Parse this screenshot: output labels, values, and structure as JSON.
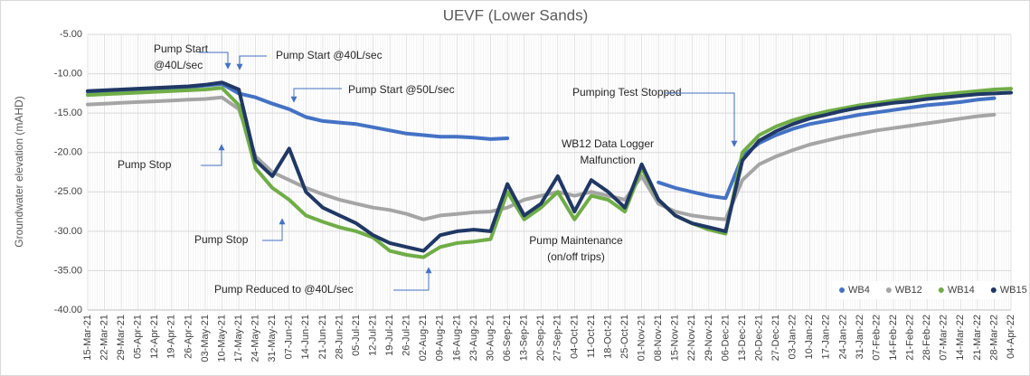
{
  "chart_data": {
    "type": "line",
    "title": "UEVF (Lower Sands)",
    "y_label": "Groundwater elevation (mAHD)",
    "categories": [
      "15-Mar-21",
      "22-Mar-21",
      "29-Mar-21",
      "05-Apr-21",
      "12-Apr-21",
      "19-Apr-21",
      "26-Apr-21",
      "03-May-21",
      "10-May-21",
      "17-May-21",
      "24-May-21",
      "31-May-21",
      "07-Jun-21",
      "14-Jun-21",
      "21-Jun-21",
      "28-Jun-21",
      "05-Jul-21",
      "12-Jul-21",
      "19-Jul-21",
      "26-Jul-21",
      "02-Aug-21",
      "09-Aug-21",
      "16-Aug-21",
      "23-Aug-21",
      "30-Aug-21",
      "06-Sep-21",
      "13-Sep-21",
      "20-Sep-21",
      "27-Sep-21",
      "04-Oct-21",
      "11-Oct-21",
      "18-Oct-21",
      "25-Oct-21",
      "01-Nov-21",
      "08-Nov-21",
      "15-Nov-21",
      "22-Nov-21",
      "29-Nov-21",
      "06-Dec-21",
      "13-Dec-21",
      "20-Dec-21",
      "27-Dec-21",
      "03-Jan-22",
      "10-Jan-22",
      "17-Jan-22",
      "24-Jan-22",
      "31-Jan-22",
      "07-Feb-22",
      "14-Feb-22",
      "21-Feb-22",
      "28-Feb-22",
      "07-Mar-22",
      "14-Mar-22",
      "21-Mar-22",
      "28-Mar-22",
      "04-Apr-22"
    ],
    "series": [
      {
        "name": "WB4",
        "color": "#4472c4",
        "values": [
          -12.3,
          -12.2,
          -12.1,
          -12.0,
          -11.9,
          -11.8,
          -11.7,
          -11.5,
          -11.3,
          -12.5,
          -13.0,
          -13.8,
          -14.5,
          -15.5,
          -16.0,
          -16.2,
          -16.4,
          -16.8,
          -17.2,
          -17.6,
          -17.8,
          -18.0,
          -18.0,
          -18.1,
          -18.3,
          -18.2,
          null,
          null,
          null,
          null,
          null,
          null,
          null,
          null,
          -23.8,
          -24.5,
          -25.0,
          -25.5,
          -25.8,
          -20.5,
          -18.8,
          -17.8,
          -17.0,
          -16.4,
          -16.0,
          -15.6,
          -15.2,
          -14.9,
          -14.6,
          -14.3,
          -14.0,
          -13.8,
          -13.6,
          -13.3,
          -13.1,
          null
        ]
      },
      {
        "name": "WB12",
        "color": "#a5a5a5",
        "values": [
          -13.9,
          -13.8,
          -13.7,
          -13.6,
          -13.5,
          -13.4,
          -13.3,
          -13.2,
          -13.0,
          -14.5,
          -20.5,
          -22.5,
          -23.5,
          -24.5,
          -25.3,
          -26.0,
          -26.5,
          -27.0,
          -27.3,
          -27.8,
          -28.5,
          -28.0,
          -27.8,
          -27.6,
          -27.5,
          -27.0,
          -26.0,
          -25.5,
          -25.0,
          -25.5,
          -25.0,
          -25.5,
          -26.0,
          -23.0,
          -26.5,
          -27.5,
          -28.0,
          -28.3,
          -28.5,
          -23.5,
          -21.5,
          -20.5,
          -19.7,
          -19.0,
          -18.5,
          -18.0,
          -17.6,
          -17.2,
          -16.9,
          -16.6,
          -16.3,
          -16.0,
          -15.7,
          -15.4,
          -15.2,
          null
        ]
      },
      {
        "name": "WB14",
        "color": "#70ad47",
        "values": [
          -12.7,
          -12.6,
          -12.5,
          -12.4,
          -12.3,
          -12.2,
          -12.1,
          -12.0,
          -11.8,
          -14.0,
          -22.0,
          -24.5,
          -26.0,
          -28.0,
          -28.8,
          -29.5,
          -30.0,
          -30.8,
          -32.5,
          -33.0,
          -33.3,
          -32.0,
          -31.5,
          -31.3,
          -31.0,
          -25.0,
          -28.5,
          -27.0,
          -25.0,
          -28.5,
          -25.5,
          -26.0,
          -27.5,
          -22.0,
          -26.0,
          -28.0,
          -29.0,
          -29.8,
          -30.3,
          -20.0,
          -17.8,
          -16.7,
          -15.9,
          -15.3,
          -14.8,
          -14.4,
          -14.0,
          -13.7,
          -13.4,
          -13.1,
          -12.8,
          -12.6,
          -12.4,
          -12.2,
          -12.0,
          -11.9
        ]
      },
      {
        "name": "WB15",
        "color": "#203864",
        "values": [
          -12.2,
          -12.1,
          -12.0,
          -11.9,
          -11.8,
          -11.7,
          -11.6,
          -11.4,
          -11.1,
          -12.0,
          -21.0,
          -23.0,
          -19.5,
          -25.0,
          -27.0,
          -28.0,
          -29.0,
          -30.5,
          -31.5,
          -32.0,
          -32.5,
          -30.5,
          -30.0,
          -29.8,
          -30.0,
          -24.0,
          -28.0,
          -26.5,
          -23.0,
          -27.5,
          -23.5,
          -25.0,
          -27.0,
          -21.5,
          -26.0,
          -28.0,
          -29.0,
          -29.5,
          -30.0,
          -21.0,
          -18.5,
          -17.3,
          -16.4,
          -15.7,
          -15.2,
          -14.7,
          -14.3,
          -14.0,
          -13.7,
          -13.5,
          -13.2,
          -13.0,
          -12.8,
          -12.6,
          -12.5,
          -12.4
        ]
      }
    ],
    "ylim": [
      -40,
      -5
    ],
    "yticks": [
      {
        "value": -5,
        "label": "-5.00"
      },
      {
        "value": -10,
        "label": "-10.00"
      },
      {
        "value": -15,
        "label": "-15.00"
      },
      {
        "value": -20,
        "label": "-20.00"
      },
      {
        "value": -25,
        "label": "-25.00"
      },
      {
        "value": -30,
        "label": "-30.00"
      },
      {
        "value": -35,
        "label": "-35.00"
      },
      {
        "value": -40,
        "label": "-40.00"
      }
    ],
    "grid": true,
    "legend": "bottom-right",
    "annotations": [
      {
        "lines": [
          "Pump Start",
          "@40L/sec"
        ]
      },
      {
        "lines": [
          "Pump Start @40L/sec"
        ]
      },
      {
        "lines": [
          "Pump Start @50L/sec"
        ]
      },
      {
        "lines": [
          "Pump Stop"
        ]
      },
      {
        "lines": [
          "Pump Stop"
        ]
      },
      {
        "lines": [
          "WB12 Data Logger",
          "Malfunction"
        ]
      },
      {
        "lines": [
          "Pumping Test Stopped"
        ]
      },
      {
        "lines": [
          "Pump Maintenance",
          "(on/off trips)"
        ]
      },
      {
        "lines": [
          "Pump Reduced to @40L/sec"
        ]
      }
    ]
  }
}
